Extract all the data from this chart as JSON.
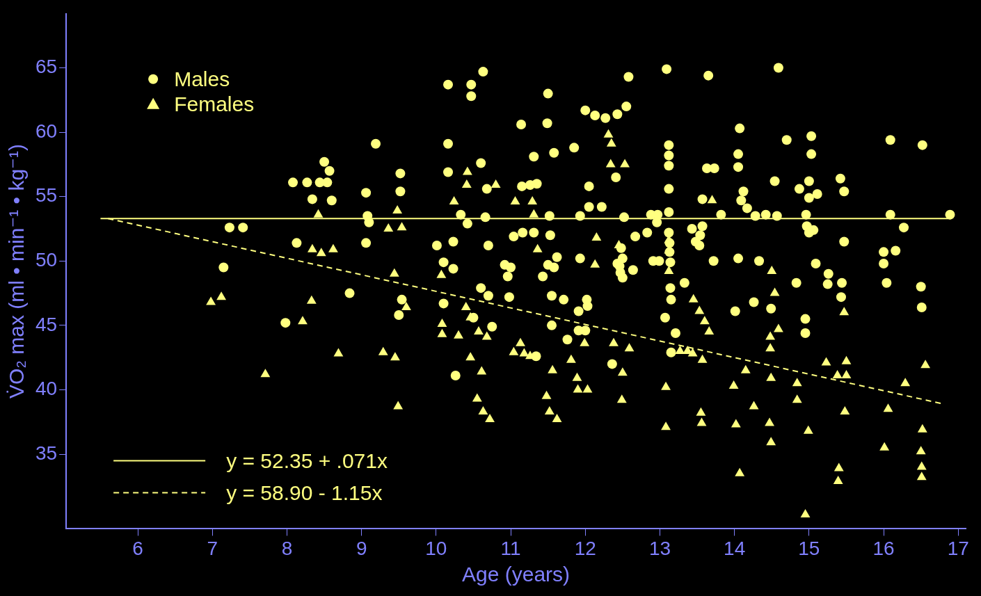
{
  "chart_data": {
    "type": "scatter",
    "xlabel": "Age (years)",
    "ylabel": "V̇O₂ max (ml • min⁻¹ • kg⁻¹)",
    "xlim": [
      5.04,
      17.1
    ],
    "ylim": [
      29.2,
      69.2
    ],
    "xticks": [
      6,
      7,
      8,
      9,
      10,
      11,
      12,
      13,
      14,
      15,
      16,
      17
    ],
    "yticks": [
      35,
      40,
      45,
      50,
      55,
      60,
      65
    ],
    "grid": false,
    "legend": "left",
    "series": [
      {
        "name": "Males",
        "marker": "circle",
        "color": "#ffff80",
        "x": [
          7.15,
          7.23,
          7.41,
          7.98,
          8.08,
          8.13,
          8.27,
          8.34,
          8.44,
          8.5,
          8.54,
          8.57,
          8.6,
          8.84,
          9.06,
          9.06,
          9.08,
          9.1,
          9.19,
          9.5,
          9.52,
          9.52,
          9.54,
          10.01,
          10.1,
          10.1,
          10.16,
          10.16,
          10.16,
          10.23,
          10.23,
          10.26,
          10.33,
          10.42,
          10.47,
          10.47,
          10.5,
          10.6,
          10.6,
          10.63,
          10.66,
          10.68,
          10.7,
          10.7,
          10.75,
          10.92,
          10.96,
          10.98,
          11.0,
          11.04,
          11.14,
          11.15,
          11.16,
          11.26,
          11.31,
          11.31,
          11.34,
          11.35,
          11.43,
          11.49,
          11.5,
          11.5,
          11.52,
          11.53,
          11.55,
          11.55,
          11.58,
          11.58,
          11.62,
          11.71,
          11.76,
          11.85,
          11.91,
          11.91,
          11.93,
          11.93,
          12.0,
          12.0,
          12.02,
          12.03,
          12.05,
          12.05,
          12.13,
          12.22,
          12.27,
          12.36,
          12.41,
          12.43,
          12.43,
          12.46,
          12.47,
          12.48,
          12.5,
          12.5,
          12.52,
          12.55,
          12.58,
          12.64,
          12.67,
          12.83,
          12.88,
          12.91,
          12.96,
          12.97,
          12.99,
          13.07,
          13.09,
          13.12,
          13.12,
          13.12,
          13.12,
          13.12,
          13.12,
          13.13,
          13.13,
          13.14,
          13.14,
          13.15,
          13.15,
          13.21,
          13.33,
          13.43,
          13.48,
          13.53,
          13.54,
          13.57,
          13.57,
          13.65,
          13.63,
          13.73,
          13.72,
          13.82,
          14.01,
          14.05,
          14.07,
          14.05,
          14.05,
          14.09,
          14.12,
          14.17,
          14.26,
          14.28,
          14.33,
          14.42,
          14.49,
          14.54,
          14.57,
          14.59,
          14.7,
          14.83,
          14.87,
          14.95,
          14.95,
          14.96,
          14.97,
          15.0,
          15.03,
          15.03,
          15.0,
          15.0,
          15.06,
          15.11,
          15.09,
          15.26,
          15.25,
          15.42,
          15.44,
          15.43,
          15.47,
          15.47,
          16.0,
          16.0,
          16.04,
          16.09,
          16.09,
          16.16,
          16.27,
          16.5,
          16.51,
          16.52,
          16.89
        ],
        "values": [
          49.5,
          52.6,
          52.6,
          45.2,
          56.1,
          51.4,
          56.1,
          54.8,
          56.1,
          57.7,
          56.1,
          57.0,
          54.7,
          47.5,
          51.4,
          55.3,
          53.5,
          53.0,
          59.1,
          45.8,
          56.8,
          55.4,
          47.0,
          51.2,
          49.9,
          46.7,
          59.1,
          63.7,
          56.9,
          49.4,
          51.5,
          41.1,
          53.6,
          52.9,
          63.7,
          62.8,
          45.6,
          57.6,
          47.9,
          64.7,
          53.4,
          55.6,
          47.3,
          51.2,
          44.9,
          49.7,
          48.8,
          47.2,
          49.5,
          51.9,
          60.6,
          55.8,
          52.2,
          55.9,
          58.1,
          52.2,
          42.6,
          56.0,
          48.8,
          60.7,
          63.0,
          49.7,
          53.5,
          52.0,
          45.0,
          47.3,
          58.4,
          49.5,
          50.3,
          47.0,
          43.9,
          58.8,
          44.6,
          46.1,
          53.5,
          50.2,
          61.7,
          44.6,
          47.0,
          46.5,
          55.8,
          54.2,
          61.3,
          54.2,
          61.1,
          42.0,
          56.5,
          61.4,
          49.8,
          49.6,
          49.1,
          51.0,
          48.7,
          50.2,
          53.4,
          62.0,
          64.3,
          49.3,
          51.9,
          52.2,
          53.6,
          50.0,
          53.0,
          53.6,
          50.0,
          45.6,
          64.9,
          59.0,
          58.2,
          57.4,
          55.6,
          53.8,
          52.2,
          51.4,
          50.7,
          49.9,
          47.9,
          47.0,
          42.9,
          44.4,
          48.3,
          52.5,
          51.5,
          51.2,
          52.0,
          54.8,
          52.7,
          64.4,
          57.2,
          57.2,
          50.0,
          53.6,
          46.1,
          50.2,
          60.3,
          58.3,
          57.3,
          54.7,
          55.4,
          54.1,
          46.8,
          53.5,
          50.0,
          53.6,
          46.3,
          56.2,
          53.5,
          65.0,
          59.4,
          48.3,
          55.6,
          45.5,
          44.4,
          53.6,
          52.7,
          52.2,
          59.7,
          58.3,
          56.2,
          54.9,
          52.4,
          55.2,
          49.8,
          49.0,
          48.2,
          56.4,
          48.3,
          47.2,
          55.4,
          51.5,
          50.7,
          49.8,
          48.3,
          59.4,
          53.6,
          50.8,
          52.6,
          48.0,
          46.4,
          59.0,
          53.6
        ]
      },
      {
        "name": "Females",
        "marker": "triangle",
        "color": "#ffff80",
        "x": [
          6.98,
          7.12,
          7.71,
          8.21,
          8.33,
          8.34,
          8.42,
          8.46,
          8.62,
          8.69,
          9.29,
          9.36,
          9.44,
          9.45,
          9.48,
          9.49,
          9.54,
          9.6,
          10.07,
          10.08,
          10.08,
          10.24,
          10.3,
          10.42,
          10.41,
          10.4,
          10.46,
          10.46,
          10.55,
          10.61,
          10.57,
          10.68,
          10.63,
          10.72,
          10.8,
          11.06,
          11.04,
          11.13,
          11.18,
          11.26,
          11.29,
          11.31,
          11.36,
          11.48,
          11.52,
          11.56,
          11.62,
          11.81,
          11.89,
          11.9,
          11.99,
          12.03,
          12.13,
          12.15,
          12.31,
          12.35,
          12.34,
          12.38,
          12.45,
          12.5,
          12.49,
          12.53,
          12.59,
          13.08,
          13.08,
          13.12,
          13.12,
          13.12,
          13.27,
          13.37,
          13.44,
          13.45,
          13.53,
          13.57,
          13.55,
          13.56,
          13.6,
          13.66,
          13.7,
          13.99,
          14.02,
          14.07,
          14.15,
          14.26,
          14.5,
          14.54,
          14.48,
          14.48,
          14.49,
          14.47,
          14.49,
          14.59,
          14.84,
          14.84,
          14.95,
          14.99,
          15.23,
          15.38,
          15.5,
          15.4,
          15.39,
          15.47,
          15.5,
          15.48,
          16.01,
          16.06,
          16.29,
          16.56,
          16.52,
          16.5,
          16.51,
          16.51
        ],
        "values": [
          46.8,
          47.2,
          41.2,
          45.3,
          46.9,
          50.9,
          53.6,
          50.6,
          50.9,
          42.8,
          42.9,
          52.5,
          49.0,
          42.5,
          53.9,
          38.7,
          52.6,
          46.4,
          48.9,
          45.1,
          44.3,
          54.6,
          44.2,
          56.9,
          55.9,
          46.4,
          45.6,
          42.5,
          39.3,
          41.4,
          44.5,
          44.1,
          38.3,
          37.7,
          55.9,
          54.6,
          42.9,
          43.6,
          42.8,
          42.6,
          54.6,
          53.6,
          50.9,
          39.5,
          38.3,
          41.5,
          37.7,
          42.3,
          40.9,
          40.0,
          43.6,
          40.0,
          49.7,
          51.8,
          59.8,
          59.1,
          57.5,
          43.6,
          51.2,
          41.3,
          39.2,
          57.5,
          43.2,
          40.2,
          37.1,
          51.6,
          50.8,
          49.2,
          43.0,
          43.0,
          42.8,
          47.0,
          46.1,
          42.3,
          38.2,
          37.4,
          45.3,
          44.5,
          54.7,
          40.3,
          37.3,
          33.5,
          41.5,
          38.7,
          49.2,
          47.5,
          43.2,
          44.1,
          40.9,
          37.4,
          35.9,
          44.7,
          40.5,
          39.2,
          30.3,
          36.8,
          42.1,
          41.1,
          41.1,
          33.9,
          32.9,
          46.0,
          42.2,
          38.3,
          35.5,
          38.5,
          40.5,
          41.9,
          36.9,
          35.2,
          34.0,
          33.2
        ]
      },
      {
        "name": "y = 52.35 + .071x",
        "type": "line",
        "line_style": "solid",
        "color": "#ffff80",
        "x": [
          5.5,
          16.9
        ],
        "values": [
          53.3,
          53.3
        ]
      },
      {
        "name": "y = 58.90 - 1.15x",
        "type": "line",
        "line_style": "dashed",
        "color": "#ffff80",
        "x": [
          5.6,
          16.8
        ],
        "values": [
          53.3,
          38.9
        ]
      }
    ]
  }
}
